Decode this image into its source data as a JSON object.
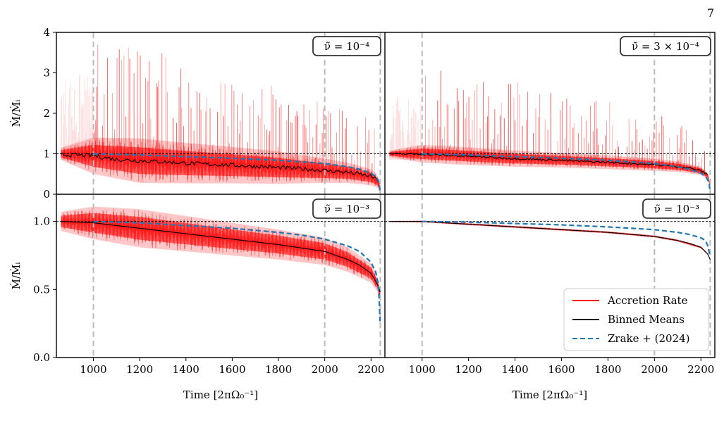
{
  "page_number": "7",
  "chart_data": [
    {
      "type": "line",
      "panel": "top-left",
      "badge": "ν̃ = 10⁻⁴",
      "ylabel": "Ṁ/Ṁᵢ",
      "xlabel": "",
      "xlim": [
        840,
        2260
      ],
      "ylim": [
        0,
        4
      ],
      "yticks": [
        0,
        1,
        2,
        3,
        4
      ],
      "ytick_labels": [
        "0",
        "1",
        "2",
        "3",
        "4"
      ],
      "vlines": [
        1000,
        2000,
        2240
      ],
      "hline": 1.0,
      "series": [
        {
          "name": "Accretion Rate",
          "x": [
            860,
            1000,
            1200,
            1400,
            1600,
            1800,
            2000,
            2100,
            2200,
            2230,
            2240
          ],
          "mean": [
            1.0,
            0.95,
            0.83,
            0.77,
            0.72,
            0.66,
            0.58,
            0.53,
            0.42,
            0.3,
            0.1
          ],
          "spread": [
            0.15,
            0.45,
            0.55,
            0.5,
            0.45,
            0.4,
            0.3,
            0.25,
            0.2,
            0.15,
            0.1
          ],
          "spike_max": 4.0
        },
        {
          "name": "Binned Means",
          "x": [
            860,
            1000,
            1100,
            1200,
            1300,
            1400,
            1500,
            1600,
            1700,
            1800,
            1900,
            2000,
            2100,
            2150,
            2200,
            2230
          ],
          "values": [
            0.98,
            0.95,
            0.86,
            0.83,
            0.8,
            0.77,
            0.74,
            0.72,
            0.69,
            0.66,
            0.63,
            0.59,
            0.54,
            0.5,
            0.44,
            0.35
          ]
        },
        {
          "name": "Zrake + (2024)",
          "x": [
            1000,
            1200,
            1400,
            1600,
            1800,
            1900,
            2000,
            2100,
            2150,
            2200,
            2220,
            2235,
            2240
          ],
          "values": [
            1.0,
            0.97,
            0.93,
            0.89,
            0.84,
            0.8,
            0.76,
            0.68,
            0.62,
            0.52,
            0.44,
            0.3,
            0.0
          ]
        }
      ]
    },
    {
      "type": "line",
      "panel": "top-right",
      "badge": "ν̃ = 3 × 10⁻⁴",
      "ylabel": "",
      "xlabel": "",
      "xlim": [
        840,
        2260
      ],
      "ylim": [
        0,
        4
      ],
      "vlines": [
        1000,
        2000,
        2240
      ],
      "hline": 1.0,
      "series": [
        {
          "name": "Accretion Rate",
          "x": [
            860,
            1000,
            1200,
            1400,
            1600,
            1800,
            2000,
            2100,
            2200,
            2230,
            2240
          ],
          "mean": [
            1.0,
            1.0,
            0.94,
            0.88,
            0.84,
            0.79,
            0.73,
            0.68,
            0.58,
            0.45,
            0.2
          ],
          "spread": [
            0.08,
            0.22,
            0.22,
            0.2,
            0.18,
            0.17,
            0.15,
            0.13,
            0.1,
            0.08,
            0.05
          ],
          "spike_max": 3.3
        },
        {
          "name": "Binned Means",
          "x": [
            860,
            1000,
            1100,
            1200,
            1300,
            1400,
            1500,
            1600,
            1700,
            1800,
            1900,
            2000,
            2100,
            2150,
            2200,
            2230
          ],
          "values": [
            1.0,
            0.99,
            0.96,
            0.94,
            0.91,
            0.88,
            0.86,
            0.84,
            0.81,
            0.79,
            0.76,
            0.73,
            0.68,
            0.65,
            0.58,
            0.48
          ]
        },
        {
          "name": "Zrake + (2024)",
          "x": [
            1000,
            1200,
            1400,
            1600,
            1800,
            1900,
            2000,
            2100,
            2150,
            2200,
            2220,
            2235,
            2240
          ],
          "values": [
            1.0,
            0.97,
            0.93,
            0.89,
            0.84,
            0.8,
            0.76,
            0.68,
            0.62,
            0.52,
            0.44,
            0.3,
            0.0
          ]
        }
      ]
    },
    {
      "type": "line",
      "panel": "bottom-left",
      "badge": "ν̃ = 10⁻³",
      "ylabel": "Ṁ/Ṁᵢ",
      "xlabel": "Time [2πΩ₀⁻¹]",
      "xlim": [
        840,
        2260
      ],
      "ylim": [
        0,
        1.2
      ],
      "yticks": [
        0.0,
        0.5,
        1.0
      ],
      "ytick_labels": [
        "0.0",
        "0.5",
        "1.0"
      ],
      "xticks": [
        1000,
        1200,
        1400,
        1600,
        1800,
        2000,
        2200
      ],
      "xtick_labels": [
        "1000",
        "1200",
        "1400",
        "1600",
        "1800",
        "2000",
        "2200"
      ],
      "vlines": [
        1000,
        2000,
        2240
      ],
      "hline": 1.0,
      "series": [
        {
          "name": "Accretion Rate",
          "x": [
            860,
            1000,
            1200,
            1400,
            1600,
            1800,
            2000,
            2100,
            2200,
            2230,
            2240
          ],
          "mean": [
            1.0,
            0.99,
            0.95,
            0.91,
            0.87,
            0.83,
            0.78,
            0.72,
            0.62,
            0.53,
            0.45
          ],
          "spread": [
            0.07,
            0.12,
            0.14,
            0.13,
            0.12,
            0.11,
            0.1,
            0.09,
            0.07,
            0.05,
            0.04
          ]
        },
        {
          "name": "Binned Means",
          "x": [
            860,
            1000,
            1200,
            1400,
            1600,
            1800,
            2000,
            2100,
            2150,
            2200,
            2230,
            2240
          ],
          "values": [
            1.0,
            0.99,
            0.95,
            0.91,
            0.87,
            0.83,
            0.78,
            0.72,
            0.68,
            0.62,
            0.53,
            0.48
          ]
        },
        {
          "name": "Zrake + (2024)",
          "x": [
            1000,
            1200,
            1400,
            1600,
            1800,
            1900,
            2000,
            2100,
            2150,
            2200,
            2220,
            2230,
            2235,
            2240
          ],
          "values": [
            1.0,
            0.99,
            0.97,
            0.95,
            0.92,
            0.9,
            0.87,
            0.82,
            0.78,
            0.7,
            0.63,
            0.55,
            0.45,
            0.22
          ]
        }
      ]
    },
    {
      "type": "line",
      "panel": "bottom-right",
      "badge": "ν̃ = 10⁻³",
      "ylabel": "",
      "xlabel": "Time [2πΩ₀⁻¹]",
      "xlim": [
        840,
        2260
      ],
      "ylim": [
        0,
        1.2
      ],
      "xticks": [
        1000,
        1200,
        1400,
        1600,
        1800,
        2000,
        2200
      ],
      "xtick_labels": [
        "1000",
        "1200",
        "1400",
        "1600",
        "1800",
        "2000",
        "2200"
      ],
      "vlines": [
        1000,
        2000,
        2240
      ],
      "hline": 1.0,
      "series": [
        {
          "name": "Accretion Rate",
          "x": [
            860,
            1000,
            1200,
            1400,
            1600,
            1800,
            2000,
            2100,
            2200,
            2230,
            2240
          ],
          "mean": [
            1.0,
            1.0,
            0.98,
            0.96,
            0.94,
            0.92,
            0.89,
            0.86,
            0.81,
            0.76,
            0.72
          ],
          "spread": [
            0.004,
            0.006,
            0.008,
            0.008,
            0.008,
            0.008,
            0.008,
            0.008,
            0.008,
            0.006,
            0.005
          ]
        },
        {
          "name": "Binned Means",
          "x": [
            860,
            1000,
            1200,
            1400,
            1600,
            1800,
            2000,
            2100,
            2150,
            2200,
            2230,
            2240
          ],
          "values": [
            1.0,
            1.0,
            0.98,
            0.96,
            0.94,
            0.92,
            0.89,
            0.86,
            0.84,
            0.81,
            0.76,
            0.72
          ]
        },
        {
          "name": "Zrake + (2024)",
          "x": [
            1000,
            1200,
            1400,
            1600,
            1800,
            1900,
            2000,
            2100,
            2150,
            2200,
            2220,
            2230,
            2240
          ],
          "values": [
            1.0,
            0.995,
            0.985,
            0.975,
            0.96,
            0.95,
            0.94,
            0.92,
            0.905,
            0.88,
            0.86,
            0.82,
            0.74
          ]
        }
      ]
    }
  ],
  "legend": {
    "placement": "lower-right",
    "entries": [
      {
        "label": "Accretion Rate",
        "color": "#ff0000",
        "style": "solid"
      },
      {
        "label": "Binned Means",
        "color": "#000000",
        "style": "solid"
      },
      {
        "label": "Zrake + (2024)",
        "color": "#1f77b4",
        "style": "dashed"
      }
    ]
  },
  "colors": {
    "accretion": "#ff0000",
    "binned": "#000000",
    "zrake": "#1f77b4",
    "vline": "#bbbbbb",
    "hline": "#000000"
  }
}
